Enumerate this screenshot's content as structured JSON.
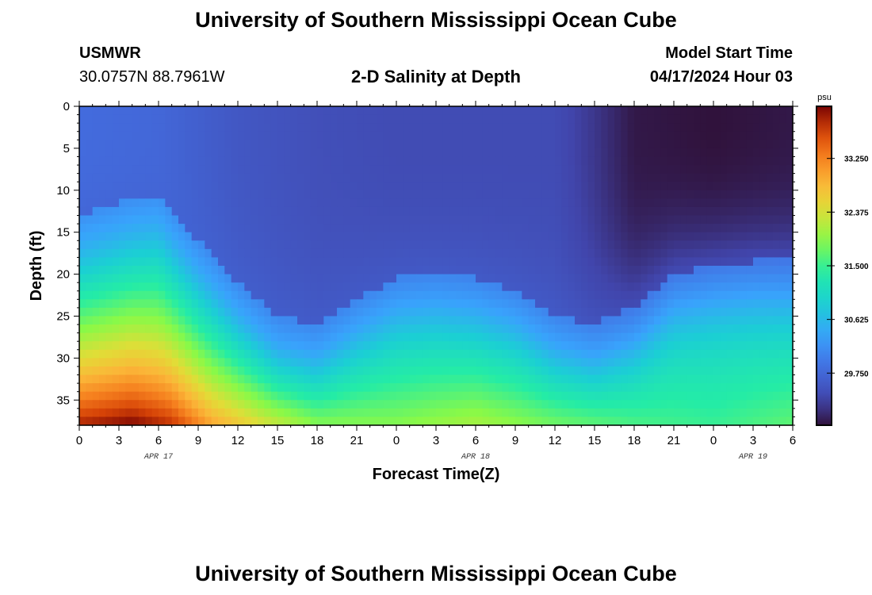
{
  "header": {
    "title": "University of Southern Mississippi Ocean Cube",
    "station": "USMWR",
    "coordinates": "30.0757N  88.7961W",
    "plot_title": "2-D Salinity at Depth",
    "model_label": "Model Start Time",
    "model_time": "04/17/2024 Hour 03"
  },
  "footer": {
    "title": "University of Southern Mississippi Ocean Cube"
  },
  "chart_data": {
    "type": "heatmap",
    "title": "2-D Salinity at Depth",
    "xlabel": "Forecast Time(Z)",
    "ylabel": "Depth (ft)",
    "x_tick_labels": [
      "0",
      "3",
      "6",
      "9",
      "12",
      "15",
      "18",
      "21",
      "0",
      "3",
      "6",
      "9",
      "12",
      "15",
      "18",
      "21",
      "0",
      "3",
      "6"
    ],
    "date_labels": [
      {
        "label": "APR 17",
        "at_hour": 6
      },
      {
        "label": "APR 18",
        "at_hour": 30
      },
      {
        "label": "APR 19",
        "at_hour": 51
      }
    ],
    "xlim_hours": [
      0,
      54
    ],
    "y_ticks": [
      0,
      5,
      10,
      15,
      20,
      25,
      30,
      35
    ],
    "ylim": [
      0,
      38
    ],
    "y_inverted": true,
    "colorbar": {
      "unit": "psu",
      "ticks": [
        "33.250",
        "32.375",
        "31.500",
        "30.625",
        "29.750"
      ],
      "tick_values": [
        33.25,
        32.375,
        31.5,
        30.625,
        29.75
      ],
      "range": [
        28.9,
        34.1
      ]
    },
    "halocline_depth_ft": [
      {
        "hour": 0,
        "depth": 16
      },
      {
        "hour": 4,
        "depth": 14
      },
      {
        "hour": 6,
        "depth": 13.5
      },
      {
        "hour": 9,
        "depth": 19
      },
      {
        "hour": 12,
        "depth": 24
      },
      {
        "hour": 15,
        "depth": 28
      },
      {
        "hour": 18,
        "depth": 29
      },
      {
        "hour": 21,
        "depth": 26
      },
      {
        "hour": 24,
        "depth": 23.5
      },
      {
        "hour": 27,
        "depth": 23
      },
      {
        "hour": 30,
        "depth": 23.5
      },
      {
        "hour": 33,
        "depth": 25
      },
      {
        "hour": 36,
        "depth": 28
      },
      {
        "hour": 39,
        "depth": 29
      },
      {
        "hour": 42,
        "depth": 27
      },
      {
        "hour": 45,
        "depth": 23
      },
      {
        "hour": 48,
        "depth": 22
      },
      {
        "hour": 51,
        "depth": 21.5
      },
      {
        "hour": 54,
        "depth": 21.5
      }
    ],
    "surface_salinity": [
      {
        "hour": 0,
        "value": 29.8
      },
      {
        "hour": 6,
        "value": 29.75
      },
      {
        "hour": 12,
        "value": 29.55
      },
      {
        "hour": 18,
        "value": 29.45
      },
      {
        "hour": 24,
        "value": 29.4
      },
      {
        "hour": 36,
        "value": 29.4
      },
      {
        "hour": 39,
        "value": 29.2
      },
      {
        "hour": 42,
        "value": 28.95
      },
      {
        "hour": 48,
        "value": 28.9
      },
      {
        "hour": 54,
        "value": 28.95
      }
    ],
    "bottom_salinity": [
      {
        "hour": 0,
        "value": 33.9
      },
      {
        "hour": 4,
        "value": 34.1
      },
      {
        "hour": 7,
        "value": 33.8
      },
      {
        "hour": 10,
        "value": 33.0
      },
      {
        "hour": 14,
        "value": 32.4
      },
      {
        "hour": 18,
        "value": 31.9
      },
      {
        "hour": 24,
        "value": 31.9
      },
      {
        "hour": 30,
        "value": 32.1
      },
      {
        "hour": 36,
        "value": 31.8
      },
      {
        "hour": 42,
        "value": 31.6
      },
      {
        "hour": 48,
        "value": 31.5
      },
      {
        "hour": 54,
        "value": 31.7
      }
    ]
  }
}
